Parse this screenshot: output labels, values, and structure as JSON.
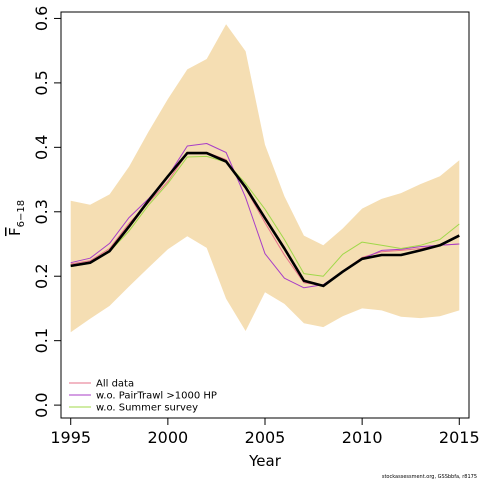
{
  "chart_data": {
    "type": "line",
    "xlabel": "Year",
    "ylabel_main": "F",
    "ylabel_sub": "6−18",
    "xlim": [
      1994.5,
      2015.5
    ],
    "ylim": [
      -0.02,
      0.61
    ],
    "xticks": [
      1995,
      2000,
      2005,
      2010,
      2015
    ],
    "yticks": [
      0.0,
      0.1,
      0.2,
      0.3,
      0.4,
      0.5,
      0.6
    ],
    "ytick_labels": [
      "0.0",
      "0.1",
      "0.2",
      "0.3",
      "0.4",
      "0.5",
      "0.6"
    ],
    "x": [
      1995,
      1996,
      1997,
      1998,
      1999,
      2000,
      2001,
      2002,
      2003,
      2004,
      2005,
      2006,
      2007,
      2008,
      2009,
      2010,
      2011,
      2012,
      2013,
      2014,
      2015
    ],
    "band": {
      "color": "#f5deb3",
      "upper": [
        0.317,
        0.311,
        0.327,
        0.37,
        0.424,
        0.475,
        0.521,
        0.537,
        0.591,
        0.549,
        0.404,
        0.324,
        0.263,
        0.248,
        0.274,
        0.305,
        0.32,
        0.329,
        0.343,
        0.355,
        0.38
      ],
      "lower": [
        0.113,
        0.134,
        0.154,
        0.184,
        0.213,
        0.242,
        0.262,
        0.244,
        0.165,
        0.115,
        0.175,
        0.157,
        0.127,
        0.121,
        0.138,
        0.15,
        0.147,
        0.137,
        0.135,
        0.138,
        0.147
      ]
    },
    "series": [
      {
        "name": "All data",
        "color": "#e6718a",
        "width": 1,
        "legend": true,
        "values": [
          0.219,
          0.224,
          0.243,
          0.282,
          0.314,
          0.347,
          0.391,
          0.392,
          0.381,
          0.336,
          0.283,
          0.233,
          0.19,
          0.186,
          0.208,
          0.229,
          0.238,
          0.24,
          0.243,
          0.248,
          0.25
        ]
      },
      {
        "name": "w.o. PairTrawl >1000 HP",
        "color": "#a83ec7",
        "width": 1,
        "legend": true,
        "values": [
          0.221,
          0.228,
          0.251,
          0.291,
          0.32,
          0.355,
          0.402,
          0.406,
          0.392,
          0.322,
          0.235,
          0.197,
          0.182,
          0.187,
          0.208,
          0.227,
          0.24,
          0.242,
          0.246,
          0.248,
          0.25
        ]
      },
      {
        "name": "w.o. Summer survey",
        "color": "#a0d84a",
        "width": 1,
        "legend": true,
        "values": [
          0.215,
          0.22,
          0.238,
          0.27,
          0.31,
          0.344,
          0.385,
          0.386,
          0.377,
          0.344,
          0.304,
          0.257,
          0.204,
          0.2,
          0.234,
          0.253,
          0.248,
          0.243,
          0.248,
          0.257,
          0.281
        ]
      },
      {
        "name": "",
        "color": "#000000",
        "width": 2.6,
        "legend": false,
        "values": [
          0.216,
          0.221,
          0.239,
          0.277,
          0.317,
          0.355,
          0.391,
          0.391,
          0.378,
          0.338,
          0.29,
          0.243,
          0.193,
          0.185,
          0.207,
          0.227,
          0.233,
          0.233,
          0.24,
          0.248,
          0.263
        ]
      }
    ],
    "legend_position": "bottom-left",
    "grid": false
  },
  "credit": "stockassessment.org, GSSbbfa, r8175"
}
